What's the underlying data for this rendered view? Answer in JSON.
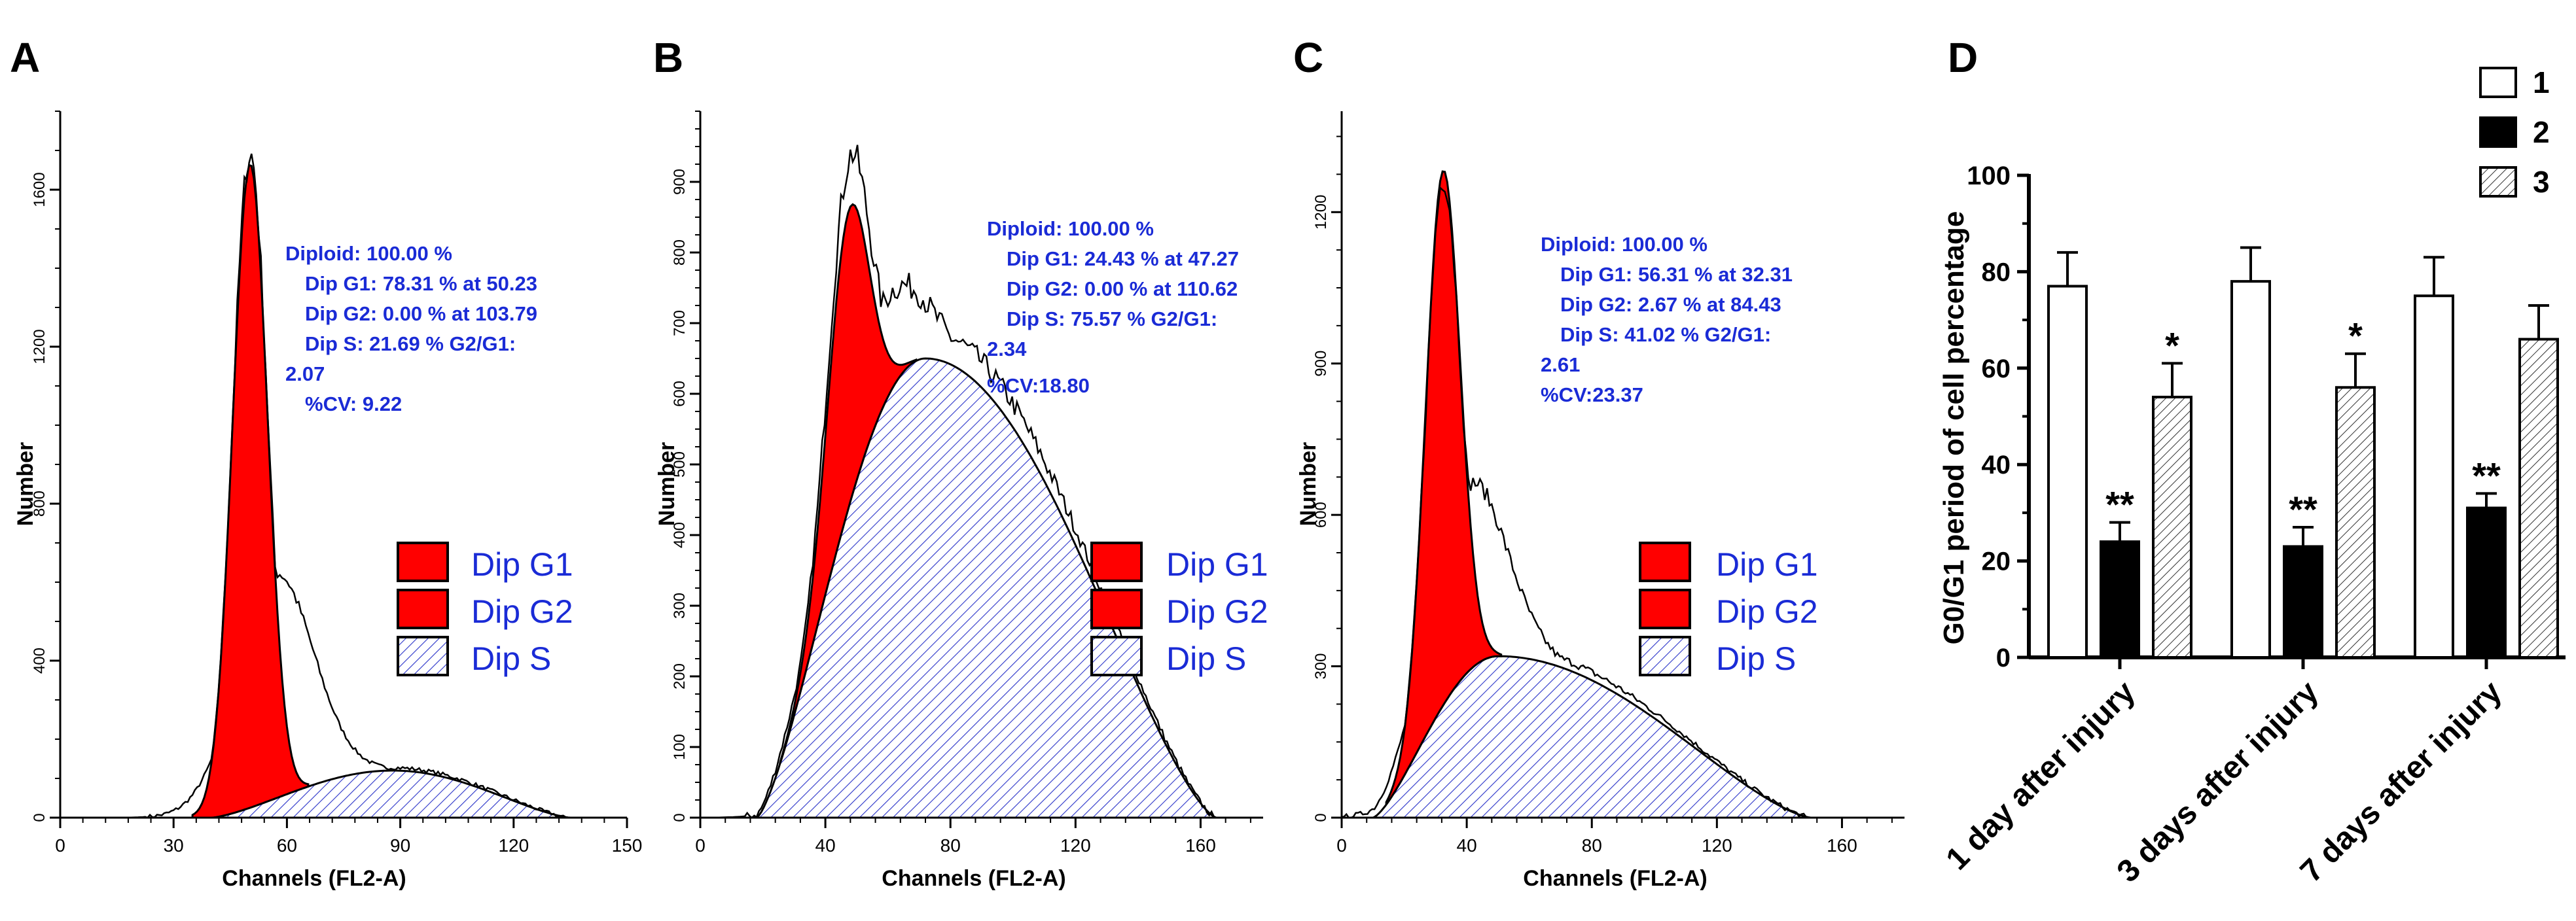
{
  "chart_data": [
    {
      "type": "area",
      "panel": "A",
      "xlabel": "Channels (FL2-A)",
      "ylabel": "Number",
      "xlim": [
        0,
        150
      ],
      "ylim": [
        0,
        1800
      ],
      "x_ticks": [
        "0",
        "30",
        "60",
        "90",
        "120",
        "150"
      ],
      "y_ticks": [
        "0",
        "400",
        "800",
        "1200",
        "1600"
      ],
      "stats_lines": [
        "Diploid: 100.00 %",
        "Dip G1: 78.31 % at 50.23",
        "Dip G2: 0.00 % at 103.79",
        "Dip S: 21.69 %   G2/G1:",
        "2.07",
        "%CV: 9.22"
      ],
      "legend": [
        "Dip G1",
        "Dip G2",
        "Dip S"
      ],
      "g1": {
        "center": 50.23,
        "sd": 4.6,
        "peak": 1640
      },
      "s": {
        "start": 40,
        "end": 135,
        "peak": 120,
        "peak_at": 88
      },
      "envelope_peak": 1690
    },
    {
      "type": "area",
      "panel": "B",
      "xlabel": "Channels (FL2-A)",
      "ylabel": "Number",
      "xlim": [
        0,
        180
      ],
      "ylim": [
        0,
        1000
      ],
      "x_ticks": [
        "0",
        "40",
        "80",
        "120",
        "160"
      ],
      "y_ticks": [
        "0",
        "100",
        "200",
        "300",
        "400",
        "500",
        "600",
        "700",
        "800",
        "900"
      ],
      "stats_lines": [
        "Diploid: 100.00 %",
        "Dip G1: 24.43 % at 47.27",
        "Dip G2: 0.00 % at 110.62",
        "Dip S: 75.57 %   G2/G1:",
        "2.34",
        "%CV:18.80"
      ],
      "legend": [
        "Dip G1",
        "Dip G2",
        "Dip S"
      ],
      "g1": {
        "center": 47.27,
        "sd": 6.5,
        "peak": 420
      },
      "s": {
        "start": 18,
        "end": 165,
        "peak": 650,
        "peak_at": 72
      },
      "envelope_peak": 950
    },
    {
      "type": "area",
      "panel": "C",
      "xlabel": "Channels (FL2-A)",
      "ylabel": "Number",
      "xlim": [
        0,
        180
      ],
      "ylim": [
        0,
        1400
      ],
      "x_ticks": [
        "0",
        "40",
        "80",
        "120",
        "160"
      ],
      "y_ticks": [
        "0",
        "300",
        "600",
        "900",
        "1200"
      ],
      "stats_lines": [
        "Diploid: 100.00 %",
        "Dip G1: 56.31 % at 32.31",
        "Dip G2: 2.67 % at 84.43",
        "Dip S: 41.02 %   G2/G1:",
        "2.61",
        "%CV:23.37"
      ],
      "legend": [
        "Dip G1",
        "Dip G2",
        "Dip S"
      ],
      "g1": {
        "center": 32.31,
        "sd": 5.5,
        "peak": 1060
      },
      "s": {
        "start": 10,
        "end": 150,
        "peak": 320,
        "peak_at": 50
      },
      "envelope_peak": 1250
    },
    {
      "type": "bar",
      "panel": "D",
      "ylabel": "G0/G1 period of cell percentage",
      "ylim": [
        0,
        100
      ],
      "y_ticks": [
        "0",
        "20",
        "40",
        "60",
        "80",
        "100"
      ],
      "categories": [
        "1 day after injury",
        "3 days after injury",
        "7 days after injury"
      ],
      "series": [
        {
          "name": "1",
          "values": [
            77,
            78,
            75
          ],
          "errors": [
            7,
            7,
            8
          ],
          "sig": [
            "",
            "",
            ""
          ]
        },
        {
          "name": "2",
          "values": [
            24,
            23,
            31
          ],
          "errors": [
            4,
            4,
            3
          ],
          "sig": [
            "**",
            "**",
            "**"
          ]
        },
        {
          "name": "3",
          "values": [
            54,
            56,
            66
          ],
          "errors": [
            7,
            7,
            7
          ],
          "sig": [
            "*",
            "*",
            ""
          ]
        }
      ]
    }
  ]
}
